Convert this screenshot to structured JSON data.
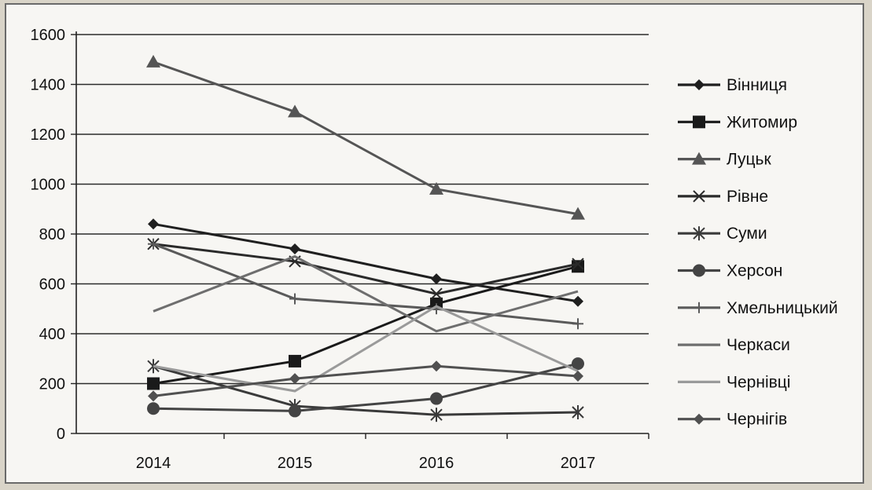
{
  "chart_data": {
    "type": "line",
    "title": "",
    "xlabel": "",
    "ylabel": "",
    "categories": [
      "2014",
      "2015",
      "2016",
      "2017"
    ],
    "ylim": [
      0,
      1600
    ],
    "yticks": [
      "0",
      "200",
      "400",
      "600",
      "800",
      "1000",
      "1200",
      "1400",
      "1600"
    ],
    "grid": "horizontal",
    "legend_position": "right",
    "series": [
      {
        "name": "Вінниця",
        "values": [
          840,
          740,
          620,
          530
        ],
        "marker": "diamond",
        "color": "#1f1f1f"
      },
      {
        "name": "Житомир",
        "values": [
          200,
          290,
          520,
          670
        ],
        "marker": "square",
        "color": "#1a1a1a"
      },
      {
        "name": "Луцьк",
        "values": [
          1490,
          1290,
          980,
          880
        ],
        "marker": "triangle",
        "color": "#555555"
      },
      {
        "name": "Рівне",
        "values": [
          760,
          690,
          560,
          680
        ],
        "marker": "x",
        "color": "#2a2a2a"
      },
      {
        "name": "Суми",
        "values": [
          270,
          110,
          75,
          85
        ],
        "marker": "asterisk",
        "color": "#3a3a3a"
      },
      {
        "name": "Херсон",
        "values": [
          100,
          90,
          140,
          280
        ],
        "marker": "circle",
        "color": "#444444"
      },
      {
        "name": "Хмельницький",
        "values": [
          760,
          540,
          500,
          440
        ],
        "marker": "plus",
        "color": "#5a5a5a"
      },
      {
        "name": "Черкаси",
        "values": [
          490,
          710,
          410,
          570
        ],
        "marker": "none",
        "color": "#6e6e6e"
      },
      {
        "name": "Чернівці",
        "values": [
          270,
          170,
          510,
          250
        ],
        "marker": "none",
        "color": "#9a9a9a"
      },
      {
        "name": "Чернігів",
        "values": [
          150,
          220,
          270,
          230
        ],
        "marker": "diamond",
        "color": "#505050"
      }
    ]
  }
}
